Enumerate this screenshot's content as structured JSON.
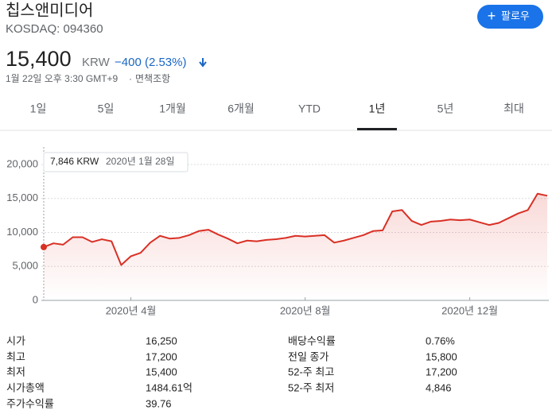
{
  "header": {
    "title": "칩스앤미디어",
    "ticker": "KOSDAQ: 094360",
    "follow_button": "팔로우",
    "price": "15,400",
    "currency": "KRW",
    "change": "−400 (2.53%)",
    "timestamp": "1월 22일 오후 3:30 GMT+9",
    "disclaimer": "면책조항"
  },
  "tabs": [
    "1일",
    "5일",
    "1개월",
    "6개월",
    "YTD",
    "1년",
    "5년",
    "최대"
  ],
  "chart_data": {
    "type": "line",
    "categories": [
      null,
      null,
      null,
      null,
      null,
      null,
      null,
      null,
      null,
      "2020년 4월",
      null,
      null,
      null,
      null,
      null,
      null,
      null,
      null,
      null,
      null,
      null,
      null,
      null,
      null,
      null,
      null,
      null,
      "2020년 8월",
      null,
      null,
      null,
      null,
      null,
      null,
      null,
      null,
      null,
      null,
      null,
      null,
      null,
      null,
      null,
      null,
      "2020년 12월",
      null,
      null,
      null,
      null,
      null,
      null,
      null,
      null
    ],
    "values": [
      7846,
      8400,
      8200,
      9300,
      9300,
      8600,
      9000,
      8700,
      5200,
      6500,
      7000,
      8500,
      9500,
      9100,
      9200,
      9600,
      10200,
      10400,
      9700,
      9100,
      8400,
      8800,
      8700,
      8900,
      9000,
      9200,
      9500,
      9400,
      9500,
      9600,
      8500,
      8800,
      9200,
      9600,
      10200,
      10300,
      13100,
      13300,
      11700,
      11100,
      11600,
      11700,
      11900,
      11800,
      11900,
      11500,
      11100,
      11400,
      12100,
      12800,
      13300,
      15700,
      15400
    ],
    "color": "#d93025",
    "ylim": [
      0,
      20000
    ],
    "yticks": [
      0,
      {
        "value": 5000,
        "label": "5,000"
      },
      {
        "value": 10000,
        "label": "10,000"
      },
      {
        "value": 15000,
        "label": "15,000"
      },
      {
        "value": 20000,
        "label": "20,000"
      }
    ],
    "grid": true,
    "tooltip": {
      "value": "7,846 KRW",
      "date": "2020년 1월 28일"
    }
  },
  "stats": {
    "left": [
      [
        "시가",
        "16,250"
      ],
      [
        "최고",
        "17,200"
      ],
      [
        "최저",
        "15,400"
      ],
      [
        "시가총액",
        "1484.61억"
      ],
      [
        "주가수익률",
        "39.76"
      ]
    ],
    "right": [
      [
        "배당수익률",
        "0.76%"
      ],
      [
        "전일 종가",
        "15,800"
      ],
      [
        "52-주 최고",
        "17,200"
      ],
      [
        "52-주 최저",
        "4,846"
      ]
    ]
  }
}
